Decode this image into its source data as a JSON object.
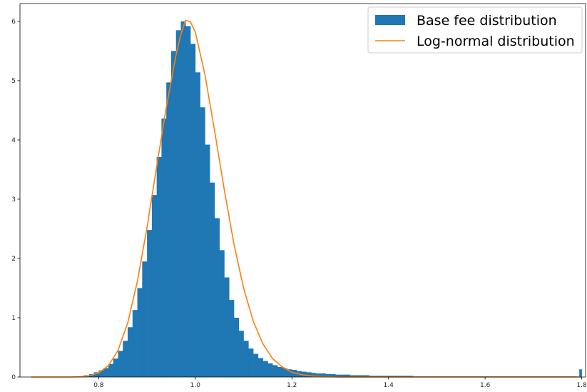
{
  "chart_data": {
    "type": "bar",
    "title": "",
    "xlabel": "",
    "ylabel": "",
    "xlim": [
      0.637,
      1.808
    ],
    "ylim": [
      0,
      6.3
    ],
    "grid": false,
    "legend_position": "top-right",
    "x_ticks": [
      {
        "value": 0.8,
        "label": "0.8"
      },
      {
        "value": 1.0,
        "label": "1.0"
      },
      {
        "value": 1.2,
        "label": "1.2"
      },
      {
        "value": 1.4,
        "label": "1.4"
      },
      {
        "value": 1.6,
        "label": "1.6"
      },
      {
        "value": 1.8,
        "label": "1.8"
      }
    ],
    "y_ticks": [
      {
        "value": 0,
        "label": "0"
      },
      {
        "value": 1,
        "label": "1"
      },
      {
        "value": 2,
        "label": "2"
      },
      {
        "value": 3,
        "label": "3"
      },
      {
        "value": 4,
        "label": "4"
      },
      {
        "value": 5,
        "label": "5"
      },
      {
        "value": 6,
        "label": "6"
      }
    ],
    "series": [
      {
        "name": "Base fee distribution",
        "kind": "histogram",
        "color": "#1f77b4",
        "bins": [
          {
            "x": 0.755,
            "y": 0.01
          },
          {
            "x": 0.765,
            "y": 0.01
          },
          {
            "x": 0.775,
            "y": 0.03
          },
          {
            "x": 0.785,
            "y": 0.05
          },
          {
            "x": 0.795,
            "y": 0.08
          },
          {
            "x": 0.805,
            "y": 0.11
          },
          {
            "x": 0.815,
            "y": 0.15
          },
          {
            "x": 0.825,
            "y": 0.22
          },
          {
            "x": 0.835,
            "y": 0.31
          },
          {
            "x": 0.845,
            "y": 0.44
          },
          {
            "x": 0.855,
            "y": 0.61
          },
          {
            "x": 0.865,
            "y": 0.84
          },
          {
            "x": 0.875,
            "y": 1.13
          },
          {
            "x": 0.885,
            "y": 1.5
          },
          {
            "x": 0.895,
            "y": 1.95
          },
          {
            "x": 0.905,
            "y": 2.48
          },
          {
            "x": 0.915,
            "y": 3.07
          },
          {
            "x": 0.925,
            "y": 3.71
          },
          {
            "x": 0.935,
            "y": 4.36
          },
          {
            "x": 0.945,
            "y": 4.97
          },
          {
            "x": 0.955,
            "y": 5.5
          },
          {
            "x": 0.965,
            "y": 5.85
          },
          {
            "x": 0.975,
            "y": 6.0
          },
          {
            "x": 0.985,
            "y": 5.92
          },
          {
            "x": 0.995,
            "y": 5.62
          },
          {
            "x": 1.005,
            "y": 5.14
          },
          {
            "x": 1.015,
            "y": 4.55
          },
          {
            "x": 1.025,
            "y": 3.92
          },
          {
            "x": 1.035,
            "y": 3.28
          },
          {
            "x": 1.045,
            "y": 2.68
          },
          {
            "x": 1.055,
            "y": 2.14
          },
          {
            "x": 1.065,
            "y": 1.68
          },
          {
            "x": 1.075,
            "y": 1.3
          },
          {
            "x": 1.085,
            "y": 1.0
          },
          {
            "x": 1.095,
            "y": 0.78
          },
          {
            "x": 1.105,
            "y": 0.61
          },
          {
            "x": 1.115,
            "y": 0.48
          },
          {
            "x": 1.125,
            "y": 0.39
          },
          {
            "x": 1.135,
            "y": 0.32
          },
          {
            "x": 1.145,
            "y": 0.27
          },
          {
            "x": 1.155,
            "y": 0.23
          },
          {
            "x": 1.165,
            "y": 0.2
          },
          {
            "x": 1.175,
            "y": 0.17
          },
          {
            "x": 1.185,
            "y": 0.15
          },
          {
            "x": 1.195,
            "y": 0.13
          },
          {
            "x": 1.205,
            "y": 0.12
          },
          {
            "x": 1.215,
            "y": 0.1
          },
          {
            "x": 1.225,
            "y": 0.09
          },
          {
            "x": 1.235,
            "y": 0.08
          },
          {
            "x": 1.245,
            "y": 0.07
          },
          {
            "x": 1.255,
            "y": 0.06
          },
          {
            "x": 1.265,
            "y": 0.06
          },
          {
            "x": 1.275,
            "y": 0.05
          },
          {
            "x": 1.285,
            "y": 0.05
          },
          {
            "x": 1.295,
            "y": 0.04
          },
          {
            "x": 1.305,
            "y": 0.04
          },
          {
            "x": 1.315,
            "y": 0.04
          },
          {
            "x": 1.325,
            "y": 0.03
          },
          {
            "x": 1.335,
            "y": 0.03
          },
          {
            "x": 1.345,
            "y": 0.03
          },
          {
            "x": 1.355,
            "y": 0.03
          },
          {
            "x": 1.365,
            "y": 0.02
          },
          {
            "x": 1.375,
            "y": 0.02
          },
          {
            "x": 1.385,
            "y": 0.02
          },
          {
            "x": 1.395,
            "y": 0.02
          },
          {
            "x": 1.405,
            "y": 0.02
          },
          {
            "x": 1.415,
            "y": 0.02
          },
          {
            "x": 1.425,
            "y": 0.02
          },
          {
            "x": 1.435,
            "y": 0.02
          },
          {
            "x": 1.445,
            "y": 0.02
          },
          {
            "x": 1.455,
            "y": 0.01
          },
          {
            "x": 1.465,
            "y": 0.01
          },
          {
            "x": 1.475,
            "y": 0.01
          },
          {
            "x": 1.485,
            "y": 0.01
          },
          {
            "x": 1.495,
            "y": 0.01
          },
          {
            "x": 1.505,
            "y": 0.01
          },
          {
            "x": 1.515,
            "y": 0.01
          },
          {
            "x": 1.525,
            "y": 0.01
          },
          {
            "x": 1.535,
            "y": 0.01
          },
          {
            "x": 1.545,
            "y": 0.01
          },
          {
            "x": 1.555,
            "y": 0.01
          },
          {
            "x": 1.565,
            "y": 0.01
          },
          {
            "x": 1.575,
            "y": 0.01
          },
          {
            "x": 1.585,
            "y": 0.01
          },
          {
            "x": 1.595,
            "y": 0.01
          },
          {
            "x": 1.605,
            "y": 0.01
          },
          {
            "x": 1.615,
            "y": 0.01
          },
          {
            "x": 1.625,
            "y": 0.01
          },
          {
            "x": 1.635,
            "y": 0.01
          },
          {
            "x": 1.645,
            "y": 0.01
          },
          {
            "x": 1.655,
            "y": 0.01
          },
          {
            "x": 1.665,
            "y": 0.01
          },
          {
            "x": 1.675,
            "y": 0.01
          },
          {
            "x": 1.685,
            "y": 0.01
          },
          {
            "x": 1.695,
            "y": 0.01
          },
          {
            "x": 1.705,
            "y": 0.01
          },
          {
            "x": 1.715,
            "y": 0.01
          },
          {
            "x": 1.725,
            "y": 0.01
          },
          {
            "x": 1.735,
            "y": 0.01
          },
          {
            "x": 1.745,
            "y": 0.01
          },
          {
            "x": 1.755,
            "y": 0.01
          },
          {
            "x": 1.765,
            "y": 0.01
          },
          {
            "x": 1.775,
            "y": 0.01
          },
          {
            "x": 1.785,
            "y": 0.01
          },
          {
            "x": 1.7975,
            "y": 0.13
          }
        ]
      },
      {
        "name": "Log-normal distribution",
        "kind": "line",
        "color": "#ff7f0e",
        "points": [
          [
            0.66,
            0.0
          ],
          [
            0.74,
            0.0
          ],
          [
            0.76,
            0.004
          ],
          [
            0.78,
            0.02
          ],
          [
            0.8,
            0.07
          ],
          [
            0.82,
            0.19
          ],
          [
            0.84,
            0.45
          ],
          [
            0.86,
            0.91
          ],
          [
            0.88,
            1.61
          ],
          [
            0.9,
            2.52
          ],
          [
            0.92,
            3.55
          ],
          [
            0.94,
            4.55
          ],
          [
            0.96,
            5.43
          ],
          [
            0.97,
            5.78
          ],
          [
            0.98,
            6.02
          ],
          [
            0.99,
            5.99
          ],
          [
            1.0,
            5.82
          ],
          [
            1.02,
            5.1
          ],
          [
            1.04,
            4.15
          ],
          [
            1.06,
            3.16
          ],
          [
            1.08,
            2.24
          ],
          [
            1.1,
            1.5
          ],
          [
            1.12,
            0.94
          ],
          [
            1.14,
            0.56
          ],
          [
            1.16,
            0.31
          ],
          [
            1.18,
            0.17
          ],
          [
            1.2,
            0.08
          ],
          [
            1.22,
            0.04
          ],
          [
            1.24,
            0.018
          ],
          [
            1.26,
            0.008
          ],
          [
            1.3,
            0.001
          ],
          [
            1.4,
            0.0
          ],
          [
            1.8,
            0.0
          ]
        ]
      }
    ]
  }
}
